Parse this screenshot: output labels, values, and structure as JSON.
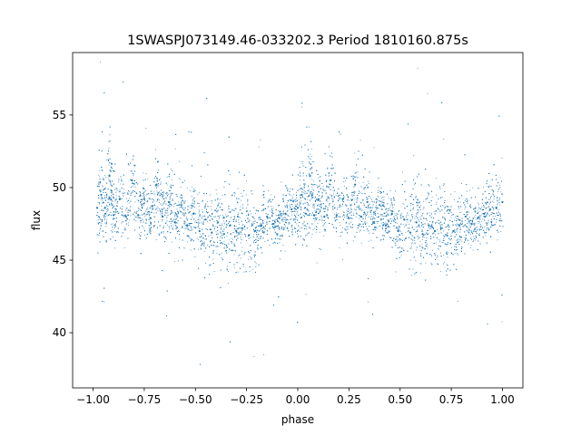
{
  "chart_data": {
    "type": "scatter",
    "title": "1SWASPJ073149.46-033202.3 Period 1810160.875s",
    "xlabel": "phase",
    "ylabel": "flux",
    "xlim": [
      -1.1,
      1.1
    ],
    "ylim": [
      36.2,
      59.3
    ],
    "xticks": [
      -1.0,
      -0.75,
      -0.5,
      -0.25,
      0.0,
      0.25,
      0.5,
      0.75,
      1.0
    ],
    "xtick_labels": [
      "−1.00",
      "−0.75",
      "−0.50",
      "−0.25",
      "0.00",
      "0.25",
      "0.50",
      "0.75",
      "1.00"
    ],
    "yticks": [
      40,
      45,
      50,
      55
    ],
    "ytick_labels": [
      "40",
      "45",
      "50",
      "55"
    ],
    "grid": false,
    "legend": "none",
    "marker_color": "#1f77b4",
    "series": [
      {
        "description_of_shape": "phase-folded light curve, repeated over two cycles",
        "x": [
          -0.98,
          -0.96,
          -0.94,
          -0.92,
          -0.9,
          -0.87,
          -0.84,
          -0.81,
          -0.78,
          -0.75,
          -0.72,
          -0.69,
          -0.66,
          -0.63,
          -0.6,
          -0.57,
          -0.54,
          -0.51,
          -0.48,
          -0.45,
          -0.42,
          -0.39,
          -0.36,
          -0.33,
          -0.3,
          -0.27,
          -0.24,
          -0.21,
          -0.18,
          -0.15,
          -0.12,
          -0.09,
          -0.06,
          -0.03,
          0.0,
          0.02,
          0.04,
          0.06,
          0.08,
          0.1,
          0.13,
          0.16,
          0.19,
          0.22,
          0.25,
          0.28,
          0.31,
          0.34,
          0.37,
          0.4,
          0.43,
          0.46,
          0.49,
          0.52,
          0.55,
          0.58,
          0.61,
          0.64,
          0.67,
          0.7,
          0.73,
          0.76,
          0.79,
          0.82,
          0.85,
          0.88,
          0.91,
          0.94,
          0.97,
          1.0
        ],
        "y": [
          48.6,
          49.5,
          48.2,
          50.8,
          48.1,
          49.2,
          48.0,
          50.5,
          48.1,
          49.2,
          47.9,
          50.2,
          48.0,
          49.0,
          47.6,
          48.8,
          47.4,
          48.2,
          47.0,
          47.8,
          46.9,
          47.6,
          46.8,
          47.4,
          47.0,
          47.2,
          46.7,
          47.0,
          47.4,
          48.0,
          47.5,
          47.9,
          48.2,
          48.5,
          48.6,
          49.5,
          48.2,
          50.8,
          48.1,
          49.2,
          48.0,
          50.5,
          48.1,
          49.2,
          47.9,
          50.2,
          48.0,
          49.0,
          47.6,
          48.8,
          47.4,
          48.2,
          47.0,
          47.8,
          46.9,
          47.6,
          46.8,
          47.4,
          47.0,
          47.2,
          46.7,
          47.0,
          47.4,
          48.0,
          47.5,
          47.9,
          48.2,
          48.5,
          48.6,
          49.0
        ],
        "spread": [
          2.2,
          3.6,
          2.0,
          3.0,
          1.6,
          2.4,
          1.6,
          3.0,
          1.5,
          2.4,
          1.3,
          2.8,
          1.4,
          2.4,
          1.2,
          2.2,
          1.3,
          2.0,
          1.8,
          2.6,
          2.2,
          2.6,
          2.5,
          2.6,
          2.4,
          2.4,
          2.5,
          2.2,
          2.0,
          1.8,
          1.4,
          1.6,
          1.6,
          2.0,
          2.2,
          3.6,
          2.0,
          3.0,
          1.6,
          2.4,
          1.6,
          3.0,
          1.5,
          2.4,
          1.3,
          2.8,
          1.4,
          2.4,
          1.2,
          2.2,
          1.3,
          2.0,
          1.8,
          2.6,
          2.2,
          2.6,
          2.5,
          2.6,
          2.4,
          2.4,
          2.5,
          2.2,
          2.0,
          1.8,
          1.4,
          1.6,
          1.6,
          2.0,
          2.2,
          2.0
        ]
      }
    ]
  }
}
